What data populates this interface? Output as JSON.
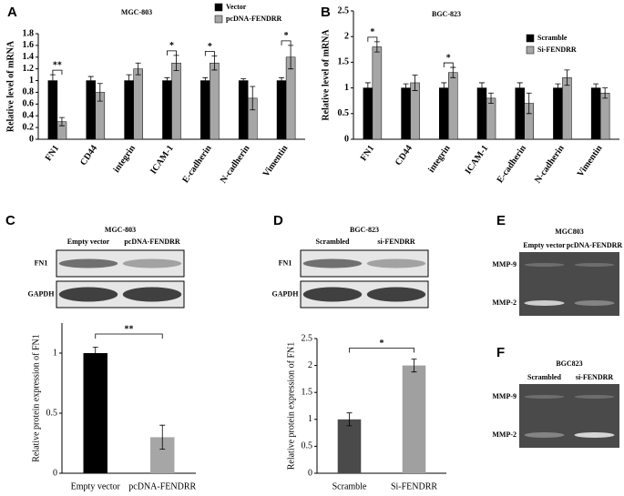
{
  "chart_data": [
    {
      "type": "grouped-bar",
      "panel": "A",
      "title": "MGC-803",
      "y_label": "Relative level of mRNA",
      "categories": [
        "FN1",
        "CD44",
        "integrin",
        "ICAM-1",
        "E-cadherin",
        "N-cadherin",
        "Vimentin"
      ],
      "series": [
        {
          "name": "Vector",
          "color": "#000000",
          "values": [
            1,
            1,
            1,
            1,
            1,
            1,
            1
          ],
          "errors": [
            0.1,
            0.07,
            0.1,
            0.05,
            0.05,
            0.03,
            0.05
          ]
        },
        {
          "name": "pcDNA-FENDRR",
          "color": "#a6a6a6",
          "values": [
            0.3,
            0.8,
            1.2,
            1.3,
            1.3,
            0.7,
            1.4
          ],
          "errors": [
            0.07,
            0.15,
            0.1,
            0.13,
            0.12,
            0.2,
            0.2
          ]
        }
      ],
      "ylim": [
        0,
        1.8
      ],
      "yticks": [
        0,
        0.2,
        0.4,
        0.6,
        0.8,
        1,
        1.2,
        1.4,
        1.6,
        1.8
      ],
      "significance": [
        {
          "label": "**",
          "category": 0
        },
        {
          "label": "*",
          "category": 3
        },
        {
          "label": "*",
          "category": 4
        },
        {
          "label": "*",
          "category": 6
        }
      ]
    },
    {
      "type": "grouped-bar",
      "panel": "B",
      "title": "BGC-823",
      "y_label": "Relative level of mRNA",
      "categories": [
        "FN1",
        "CD44",
        "integrin",
        "ICAM-1",
        "E-cadherin",
        "N-cadherin",
        "Vimentin"
      ],
      "series": [
        {
          "name": "Scramble",
          "color": "#000000",
          "values": [
            1,
            1,
            1,
            1,
            1,
            1,
            1
          ],
          "errors": [
            0.1,
            0.08,
            0.1,
            0.1,
            0.1,
            0.08,
            0.08
          ]
        },
        {
          "name": "Si-FENDRR",
          "color": "#a6a6a6",
          "values": [
            1.8,
            1.1,
            1.3,
            0.8,
            0.7,
            1.2,
            0.9
          ],
          "errors": [
            0.1,
            0.15,
            0.1,
            0.1,
            0.2,
            0.15,
            0.1
          ]
        }
      ],
      "ylim": [
        0,
        2.5
      ],
      "yticks": [
        0,
        0.5,
        1,
        1.5,
        2,
        2.5
      ],
      "significance": [
        {
          "label": "*",
          "category": 0
        },
        {
          "label": "*",
          "category": 2
        }
      ]
    },
    {
      "type": "bar",
      "panel": "C",
      "y_label": "Relative protein expression of FN1",
      "categories": [
        "Empty vector",
        "pcDNA-FENDRR"
      ],
      "values": [
        1,
        0.3
      ],
      "errors": [
        0.05,
        0.1
      ],
      "colors": [
        "#000000",
        "#a6a6a6"
      ],
      "ylim": [
        0,
        1.25
      ],
      "yticks": [
        0,
        0.5,
        1
      ],
      "significance": [
        {
          "label": "**"
        }
      ]
    },
    {
      "type": "bar",
      "panel": "D",
      "y_label": "Relative protein expression of FN1",
      "categories": [
        "Scramble",
        "Si-FENDRR"
      ],
      "values": [
        1,
        2
      ],
      "errors": [
        0.12,
        0.12
      ],
      "colors": [
        "#4a4a4a",
        "#a0a0a0"
      ],
      "ylim": [
        0,
        2.5
      ],
      "yticks": [
        0,
        0.5,
        1,
        1.5,
        2,
        2.5
      ],
      "significance": [
        {
          "label": "*"
        }
      ]
    }
  ],
  "blots": [
    {
      "title": "MGC-803",
      "lanes": [
        "Empty vector",
        "pcDNA-FENDRR"
      ],
      "bands": [
        "FN1",
        "GAPDH"
      ]
    },
    {
      "title": "BGC-823",
      "lanes": [
        "Scrambled",
        "si-FENDRR"
      ],
      "bands": [
        "FN1",
        "GAPDH"
      ]
    }
  ],
  "gels": [
    {
      "panel": "E",
      "title": "MGC803",
      "lanes": [
        "Empty vector",
        "pcDNA-FENDRR"
      ],
      "bands": [
        "MMP-9",
        "MMP-2"
      ]
    },
    {
      "panel": "F",
      "title": "BGC823",
      "lanes": [
        "Scrambled",
        "si-FENDRR"
      ],
      "bands": [
        "MMP-9",
        "MMP-2"
      ]
    }
  ]
}
